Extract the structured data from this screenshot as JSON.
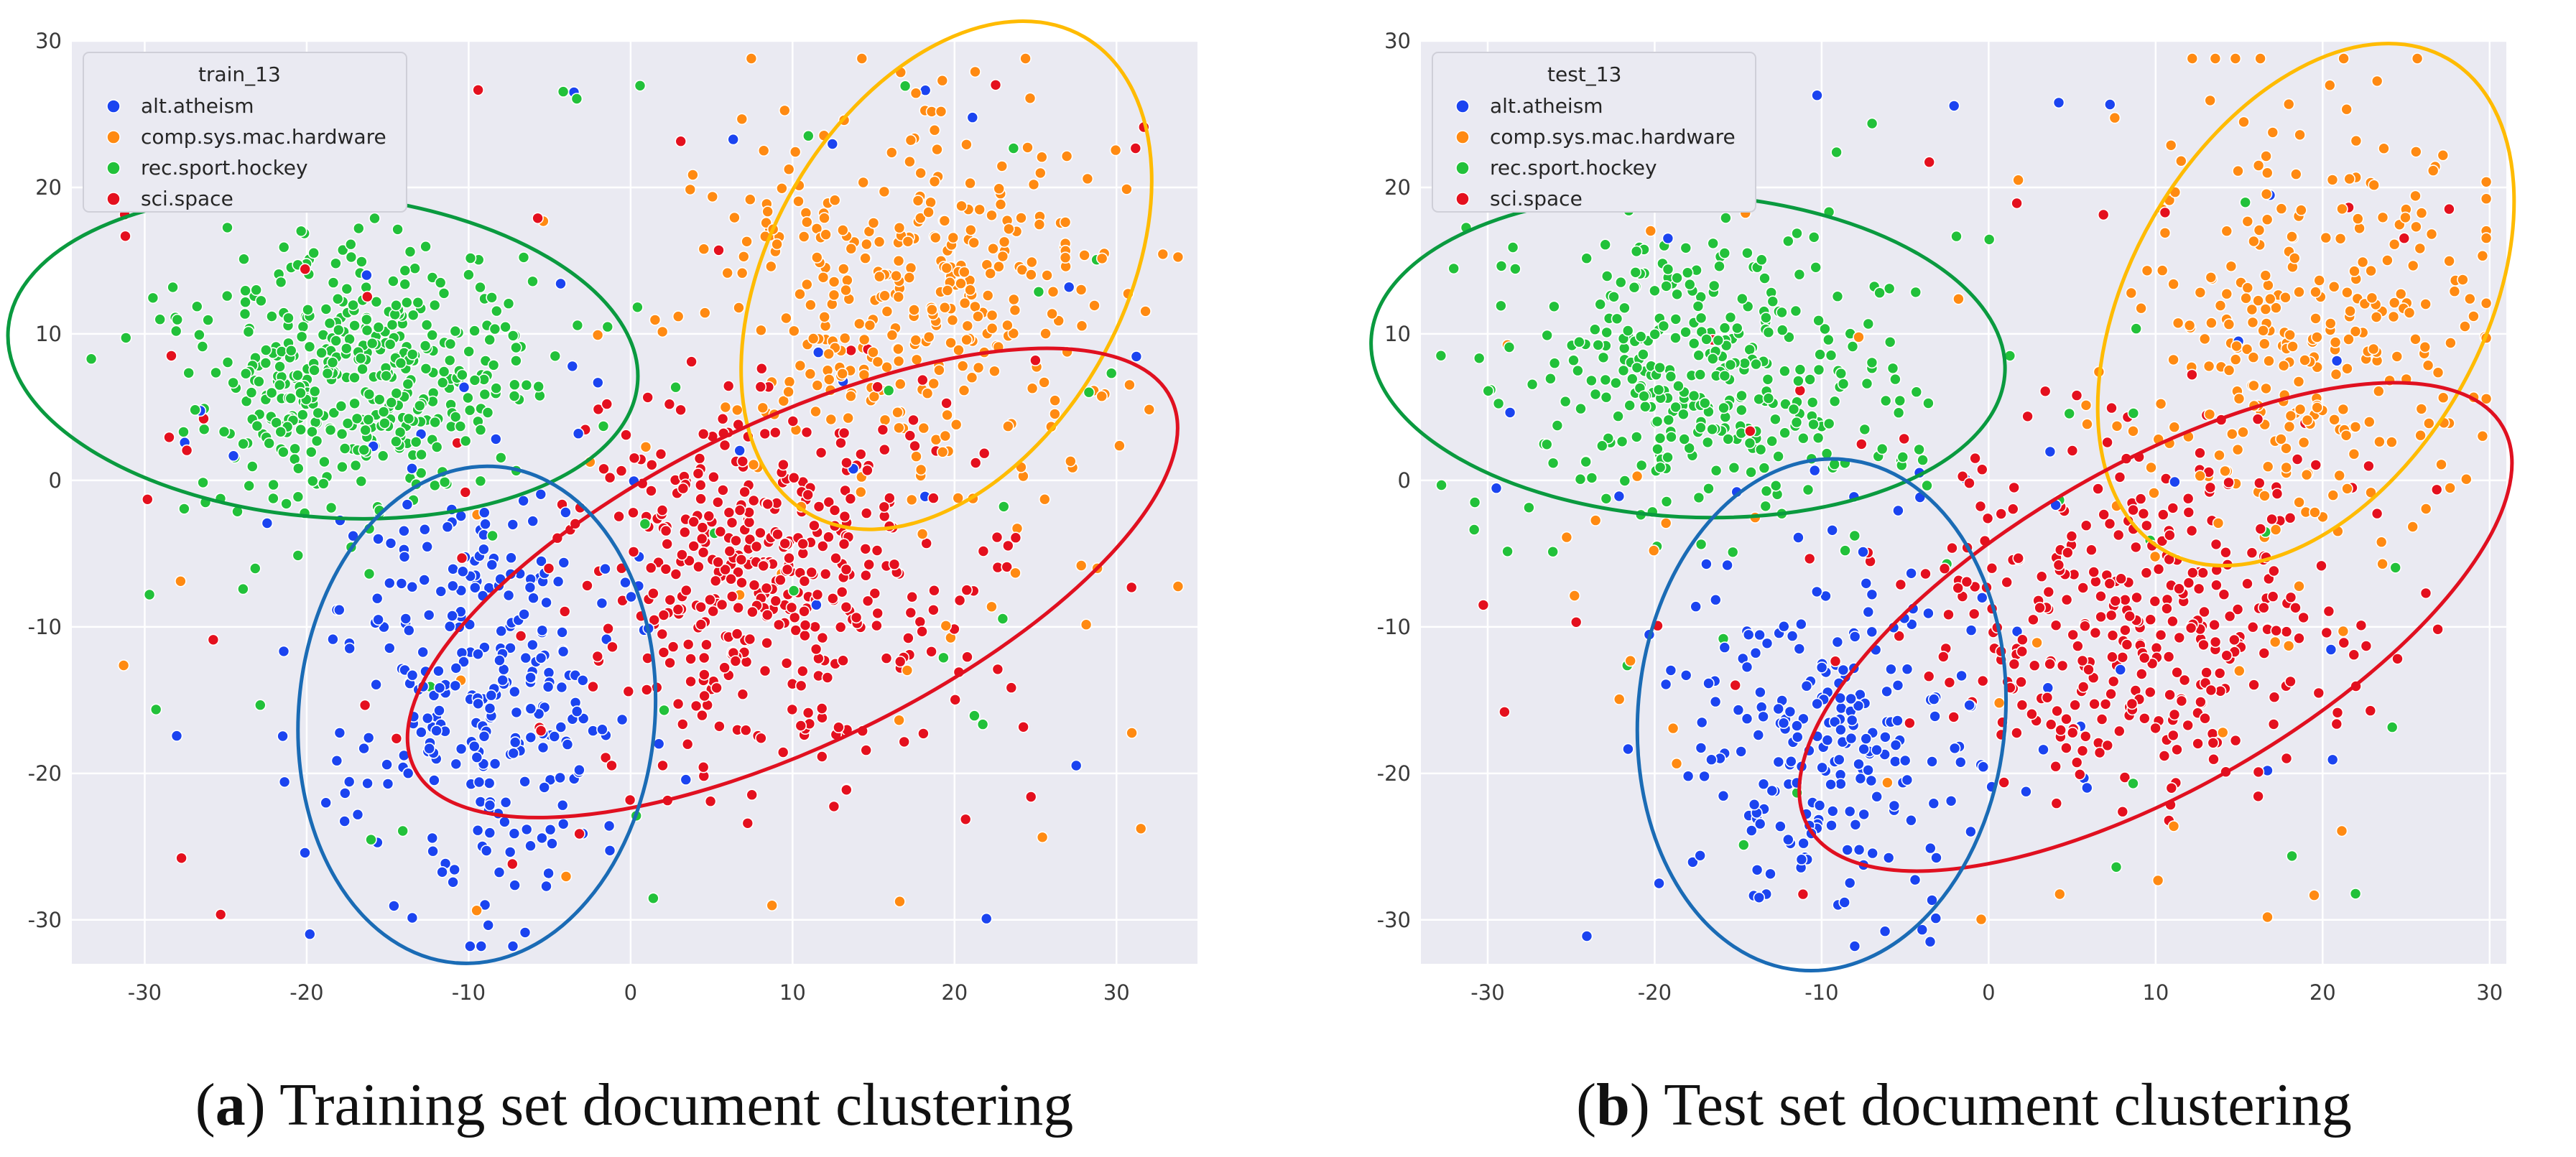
{
  "chart_data": [
    {
      "type": "scatter",
      "legend_title": "train_13",
      "legend_position": "top-left",
      "xlim": [
        -34.5,
        35
      ],
      "ylim": [
        -33,
        30
      ],
      "xticks": [
        -30,
        -20,
        -10,
        0,
        10,
        20,
        30
      ],
      "yticks": [
        30,
        20,
        10,
        0,
        -10,
        -20,
        -30
      ],
      "grid": true,
      "caption_label": "a",
      "caption_text": "Training set document clustering",
      "series": [
        {
          "name": "alt.atheism",
          "color": "#1b44f0",
          "center": [
            -9,
            -15
          ],
          "spread": [
            4.5,
            7.5
          ],
          "count": 320
        },
        {
          "name": "comp.sys.mac.hardware",
          "color": "#ff8a12",
          "center": [
            18,
            13
          ],
          "spread": [
            6.5,
            6.5
          ],
          "count": 390
        },
        {
          "name": "rec.sport.hockey",
          "color": "#22c13a",
          "center": [
            -17,
            7
          ],
          "spread": [
            5.5,
            4.5
          ],
          "count": 470
        },
        {
          "name": "sci.space",
          "color": "#e4101e",
          "center": [
            8,
            -7
          ],
          "spread": [
            6,
            6.5
          ],
          "count": 470
        }
      ],
      "annotations": [
        {
          "shape": "ellipse",
          "color": "#0a9a3f",
          "center": [
            -19,
            8.5
          ],
          "radii": [
            19.5,
            11
          ],
          "angle": 5
        },
        {
          "shape": "ellipse",
          "color": "#ffbb00",
          "center": [
            19.5,
            14
          ],
          "radii": [
            17,
            12
          ],
          "angle": -60
        },
        {
          "shape": "ellipse",
          "color": "#e01020",
          "center": [
            10,
            -7
          ],
          "radii": [
            26,
            11
          ],
          "angle": -26
        },
        {
          "shape": "ellipse",
          "color": "#1a6bb5",
          "center": [
            -9.5,
            -16
          ],
          "radii": [
            11,
            17
          ],
          "angle": 5
        }
      ]
    },
    {
      "type": "scatter",
      "legend_title": "test_13",
      "legend_position": "top-left",
      "xlim": [
        -34,
        31
      ],
      "ylim": [
        -33,
        30
      ],
      "xticks": [
        -30,
        -20,
        -10,
        0,
        10,
        20,
        30
      ],
      "yticks": [
        30,
        20,
        10,
        0,
        -10,
        -20,
        -30
      ],
      "grid": true,
      "caption_label": "b",
      "caption_text": "Test set document clustering",
      "series": [
        {
          "name": "alt.atheism",
          "color": "#1b44f0",
          "center": [
            -9,
            -17
          ],
          "spread": [
            4.5,
            6.5
          ],
          "count": 260
        },
        {
          "name": "comp.sys.mac.hardware",
          "color": "#ff8a12",
          "center": [
            19,
            10
          ],
          "spread": [
            5.5,
            7.5
          ],
          "count": 330
        },
        {
          "name": "rec.sport.hockey",
          "color": "#22c13a",
          "center": [
            -17,
            7
          ],
          "spread": [
            6,
            5
          ],
          "count": 380
        },
        {
          "name": "sci.space",
          "color": "#e4101e",
          "center": [
            9,
            -9
          ],
          "spread": [
            6.5,
            6
          ],
          "count": 380
        }
      ],
      "annotations": [
        {
          "shape": "ellipse",
          "color": "#0a9a3f",
          "center": [
            -18,
            8.5
          ],
          "radii": [
            19,
            11
          ],
          "angle": 3
        },
        {
          "shape": "ellipse",
          "color": "#ffbb00",
          "center": [
            19,
            12
          ],
          "radii": [
            17,
            12
          ],
          "angle": -60
        },
        {
          "shape": "ellipse",
          "color": "#e01020",
          "center": [
            10,
            -10
          ],
          "radii": [
            24,
            11
          ],
          "angle": -30
        },
        {
          "shape": "ellipse",
          "color": "#1a6bb5",
          "center": [
            -10,
            -16
          ],
          "radii": [
            11,
            17.5
          ],
          "angle": 5
        }
      ]
    }
  ]
}
